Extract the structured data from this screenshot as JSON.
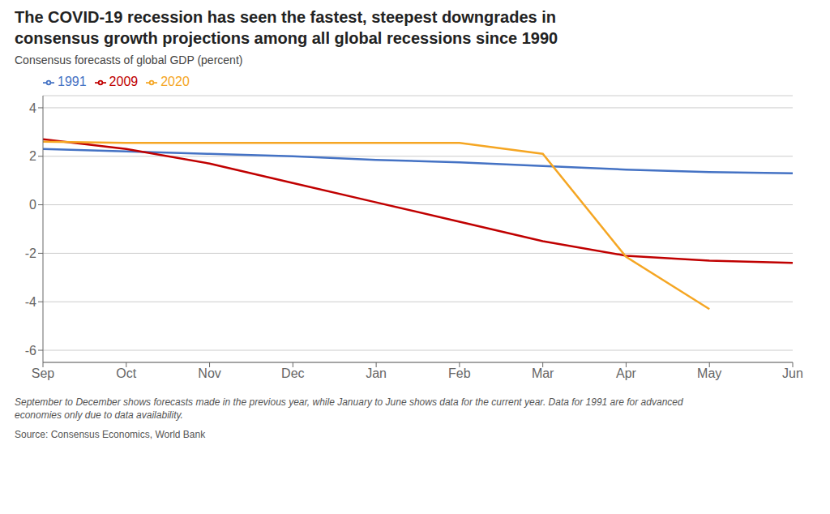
{
  "chart_data": {
    "type": "line",
    "title": "The COVID-19 recession has seen the fastest, steepest downgrades in\nconsensus growth projections among all global recessions since 1990",
    "subtitle": "Consensus forecasts of global GDP (percent)",
    "annotations": [
      "September to December shows forecasts made in the previous year, while January to June shows data for the current year. Data for 1991 are for advanced\neconomies only due to data availability.",
      "Source: Consensus Economics, World Bank"
    ],
    "categories": [
      "Sep",
      "Oct",
      "Nov",
      "Dec",
      "Jan",
      "Feb",
      "Mar",
      "Apr",
      "May",
      "Jun"
    ],
    "series": [
      {
        "name": "1991",
        "color": "#4472C4",
        "values": [
          2.3,
          2.2,
          2.1,
          2.0,
          1.85,
          1.75,
          1.6,
          1.45,
          1.35,
          1.3
        ]
      },
      {
        "name": "2009",
        "color": "#C00000",
        "values": [
          2.7,
          2.3,
          1.7,
          0.9,
          0.1,
          -0.7,
          -1.5,
          -2.1,
          -2.3,
          -2.4
        ]
      },
      {
        "name": "2020",
        "color": "#F5A623",
        "values": [
          2.6,
          2.55,
          2.55,
          2.55,
          2.55,
          2.55,
          2.1,
          -2.15,
          -4.3,
          null
        ]
      }
    ],
    "ylim": [
      -6.5,
      4.5
    ],
    "yticks": [
      -6,
      -4,
      -2,
      0,
      2,
      4
    ],
    "grid": true,
    "legend": "upper left",
    "marker": "none"
  }
}
